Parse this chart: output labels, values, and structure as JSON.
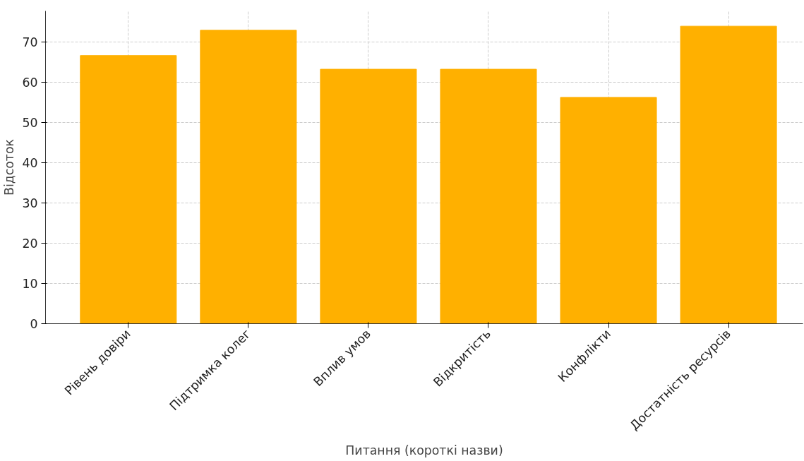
{
  "chart_data": {
    "type": "bar",
    "xlabel": "Питання (короткі назви)",
    "ylabel": "Відсоток",
    "categories": [
      "Рівень довіри",
      "Підтримка колег",
      "Вплив умов",
      "Відкритість",
      "Конфлікти",
      "Достатність ресурсів"
    ],
    "values": [
      66.7,
      73.0,
      63.3,
      63.3,
      56.3,
      74.0
    ],
    "color": "#ffb000",
    "ylim": [
      0,
      77.8
    ],
    "yticks": [
      0,
      10,
      20,
      30,
      40,
      50,
      60,
      70
    ],
    "grid": true
  }
}
